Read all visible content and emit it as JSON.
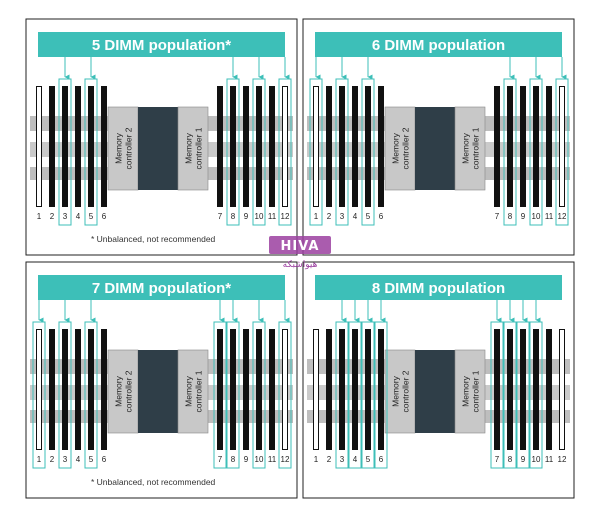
{
  "colors": {
    "accent": "#3dbfb8",
    "filled_slot": "#111111",
    "controller": "#c8c8c8",
    "cpu": "#2f3e48",
    "watermark": "#9b3fa0"
  },
  "panels": [
    {
      "title": "5 DIMM population*",
      "note": "* Unbalanced, not recommended",
      "highlighted": [
        3,
        5,
        8,
        10,
        12
      ]
    },
    {
      "title": "6 DIMM population",
      "note": "",
      "highlighted": [
        1,
        3,
        5,
        8,
        10,
        12
      ]
    },
    {
      "title": "7 DIMM population*",
      "note": "* Unbalanced, not recommended",
      "highlighted": [
        1,
        3,
        5,
        7,
        8,
        10,
        12
      ]
    },
    {
      "title": "8 DIMM population",
      "note": "",
      "highlighted": [
        3,
        4,
        5,
        6,
        7,
        8,
        9,
        10
      ]
    }
  ],
  "slots": {
    "numbers": [
      "1",
      "2",
      "3",
      "4",
      "5",
      "6",
      "7",
      "8",
      "9",
      "10",
      "11",
      "12"
    ],
    "unfilled": [
      1,
      12
    ]
  },
  "controllers": {
    "left": [
      "Memory",
      "controller 2"
    ],
    "right": [
      "Memory",
      "controller 1"
    ]
  },
  "watermark": {
    "logo_text": "HIVA",
    "tagline": "هیواشبکه",
    "icon": "hiva-logo-icon"
  }
}
